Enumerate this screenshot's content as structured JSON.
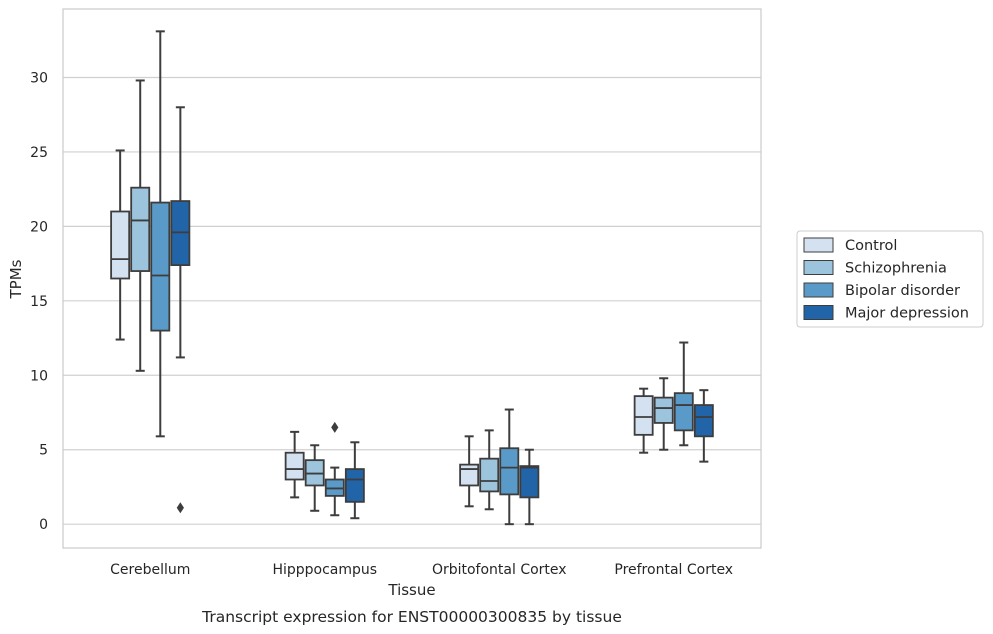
{
  "chart_data": {
    "type": "box",
    "title": "",
    "caption": "Transcript expression for ENST00000300835 by tissue",
    "xlabel": "Tissue",
    "ylabel": "TPMs",
    "ylim": [
      -1.6,
      34.6
    ],
    "yticks": [
      0,
      5,
      10,
      15,
      20,
      25,
      30
    ],
    "grid": "horizontal",
    "legend_position": "right",
    "categories": [
      "Cerebellum",
      "Hipppocampus",
      "Orbitofontal Cortex",
      "Prefrontal Cortex"
    ],
    "series": [
      {
        "name": "Control",
        "color": "#d4e1f0",
        "boxes": [
          {
            "whislo": 12.4,
            "q1": 16.5,
            "med": 17.8,
            "q3": 21.0,
            "whishi": 25.1,
            "fliers": []
          },
          {
            "whislo": 1.8,
            "q1": 3.0,
            "med": 3.7,
            "q3": 4.8,
            "whishi": 6.2,
            "fliers": []
          },
          {
            "whislo": 1.2,
            "q1": 2.6,
            "med": 3.7,
            "q3": 4.0,
            "whishi": 5.9,
            "fliers": []
          },
          {
            "whislo": 4.8,
            "q1": 6.0,
            "med": 7.2,
            "q3": 8.6,
            "whishi": 9.1,
            "fliers": []
          }
        ]
      },
      {
        "name": "Schizophrenia",
        "color": "#9cc4dd",
        "boxes": [
          {
            "whislo": 10.3,
            "q1": 17.0,
            "med": 20.4,
            "q3": 22.6,
            "whishi": 29.8,
            "fliers": []
          },
          {
            "whislo": 0.9,
            "q1": 2.6,
            "med": 3.4,
            "q3": 4.3,
            "whishi": 5.3,
            "fliers": []
          },
          {
            "whislo": 1.0,
            "q1": 2.2,
            "med": 2.9,
            "q3": 4.4,
            "whishi": 6.3,
            "fliers": []
          },
          {
            "whislo": 5.0,
            "q1": 6.8,
            "med": 7.8,
            "q3": 8.5,
            "whishi": 9.8,
            "fliers": []
          }
        ]
      },
      {
        "name": "Bipolar disorder",
        "color": "#5a9ac8",
        "boxes": [
          {
            "whislo": 5.9,
            "q1": 13.0,
            "med": 16.7,
            "q3": 21.6,
            "whishi": 33.1,
            "fliers": []
          },
          {
            "whislo": 0.6,
            "q1": 1.9,
            "med": 2.4,
            "q3": 3.0,
            "whishi": 3.8,
            "fliers": [
              6.5
            ]
          },
          {
            "whislo": 0.0,
            "q1": 2.0,
            "med": 3.8,
            "q3": 5.1,
            "whishi": 7.7,
            "fliers": []
          },
          {
            "whislo": 5.3,
            "q1": 6.3,
            "med": 8.0,
            "q3": 8.8,
            "whishi": 12.2,
            "fliers": []
          }
        ]
      },
      {
        "name": "Major depression",
        "color": "#2164a8",
        "boxes": [
          {
            "whislo": 11.2,
            "q1": 17.4,
            "med": 19.6,
            "q3": 21.7,
            "whishi": 28.0,
            "fliers": [
              1.1
            ]
          },
          {
            "whislo": 0.4,
            "q1": 1.5,
            "med": 3.0,
            "q3": 3.7,
            "whishi": 5.5,
            "fliers": []
          },
          {
            "whislo": 0.0,
            "q1": 1.8,
            "med": 3.8,
            "q3": 3.9,
            "whishi": 5.0,
            "fliers": []
          },
          {
            "whislo": 4.2,
            "q1": 5.9,
            "med": 7.2,
            "q3": 8.0,
            "whishi": 9.0,
            "fliers": []
          }
        ]
      }
    ]
  }
}
